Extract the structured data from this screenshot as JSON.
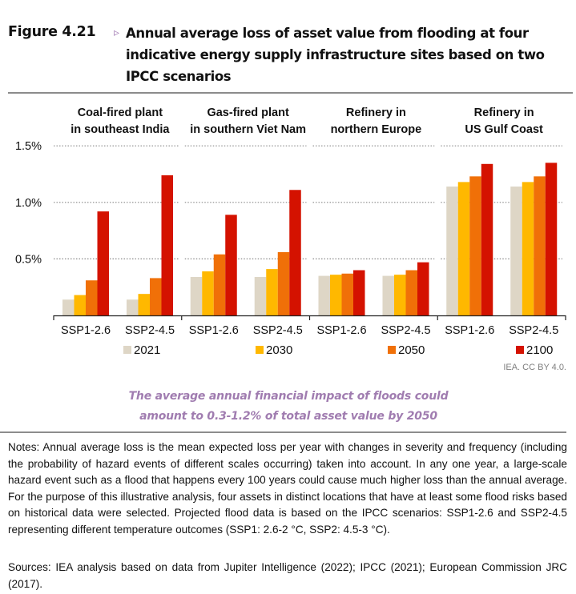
{
  "figure": {
    "label": "Figure 4.21",
    "arrow_icon": "▹",
    "title": "Annual average loss of asset value from flooding at four indicative energy supply infrastructure sites based on two IPCC scenarios"
  },
  "chart_data": {
    "type": "bar",
    "title": "Annual average loss of asset value from flooding at four indicative energy supply infrastructure sites based on two IPCC scenarios",
    "xlabel": "",
    "ylabel": "",
    "y_unit": "%",
    "ylim": [
      0,
      1.5
    ],
    "yticks": [
      "0.5%",
      "1.0%",
      "1.5%"
    ],
    "ytick_values": [
      0.5,
      1.0,
      1.5
    ],
    "grid": true,
    "legend_position": "bottom",
    "groups": [
      {
        "title_line1": "Coal-fired plant",
        "title_line2": "in southeast India"
      },
      {
        "title_line1": "Gas-fired plant",
        "title_line2": "in southern Viet Nam"
      },
      {
        "title_line1": "Refinery in",
        "title_line2": "northern Europe"
      },
      {
        "title_line1": "Refinery in",
        "title_line2": "US Gulf Coast"
      }
    ],
    "categories": [
      "SSP1-2.6",
      "SSP2-4.5",
      "SSP1-2.6",
      "SSP2-4.5",
      "SSP1-2.6",
      "SSP2-4.5",
      "SSP1-2.6",
      "SSP2-4.5"
    ],
    "series": [
      {
        "name": "2021",
        "color": "#ded6c6",
        "values": [
          0.14,
          0.14,
          0.34,
          0.34,
          0.35,
          0.35,
          1.14,
          1.14
        ]
      },
      {
        "name": "2030",
        "color": "#ffb800",
        "values": [
          0.18,
          0.19,
          0.39,
          0.41,
          0.36,
          0.36,
          1.18,
          1.18
        ]
      },
      {
        "name": "2050",
        "color": "#f07008",
        "values": [
          0.31,
          0.33,
          0.54,
          0.56,
          0.37,
          0.4,
          1.23,
          1.23
        ]
      },
      {
        "name": "2100",
        "color": "#d41200",
        "values": [
          0.92,
          1.24,
          0.89,
          1.11,
          0.4,
          0.47,
          1.34,
          1.35
        ]
      }
    ]
  },
  "credit": "IEA. CC BY 4.0.",
  "summary": {
    "line1": "The average annual financial impact of floods could",
    "line2": "amount to 0.3-1.2% of total asset value by 2050"
  },
  "notes": "Notes: Annual average loss is the mean expected loss per year with changes in severity and frequency (including the probability of hazard events of different scales occurring) taken into account. In any one year, a large-scale hazard event such as a flood that happens every 100 years could cause much higher loss than the annual average. For the purpose of this illustrative analysis, four assets in distinct locations that have at least some flood risks based on historical data were selected. Projected flood data is based on the IPCC scenarios: SSP1-2.6 and SSP2-4.5 representing different temperature outcomes (SSP1: 2.6-2 °C, SSP2: 4.5-3 °C).",
  "sources": "Sources: IEA analysis based on data from Jupiter Intelligence (2022); IPCC (2021); European Commission JRC (2017)."
}
